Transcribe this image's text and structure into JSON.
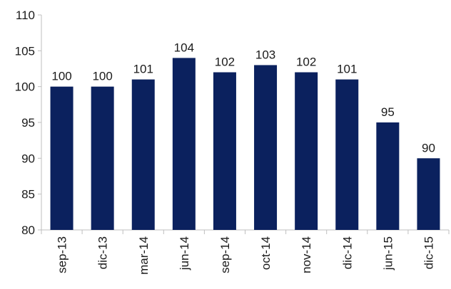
{
  "chart_data": {
    "type": "bar",
    "title": "",
    "xlabel": "",
    "ylabel": "",
    "categories": [
      "sep-13",
      "dic-13",
      "mar-14",
      "jun-14",
      "sep-14",
      "oct-14",
      "nov-14",
      "dic-14",
      "jun-15",
      "dic-15"
    ],
    "values": [
      100,
      100,
      101,
      104,
      102,
      103,
      102,
      101,
      95,
      90
    ],
    "ylim": [
      80,
      110
    ],
    "yticks": [
      "80",
      "85",
      "90",
      "95",
      "100",
      "105",
      "110"
    ],
    "grid": false,
    "legend": "none",
    "bar_color": "#0b215e",
    "axis_color": "#bfbfbf"
  }
}
